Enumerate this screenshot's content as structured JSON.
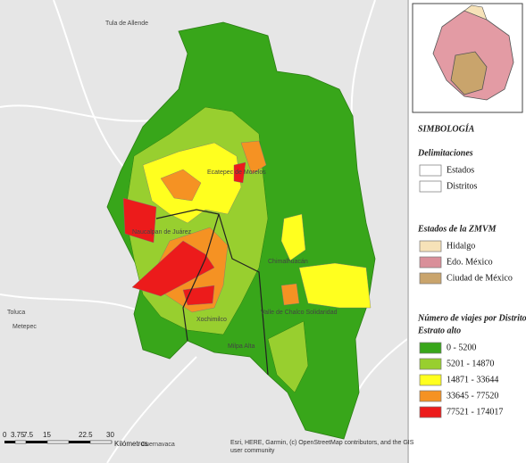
{
  "map": {
    "places": [
      "Tula de Allende",
      "Toluca",
      "Metepec",
      "Cuernavaca",
      "Ecatepec de Morelos",
      "Naucalpan de Juárez",
      "Chimalhuacán",
      "Valle de Chalco Solidaridad",
      "Xochimilco",
      "Milpa Alta"
    ],
    "scale": {
      "ticks": [
        "0",
        "3.75",
        "7.5",
        "15",
        "22.5",
        "30"
      ],
      "unit": "Kilómetros"
    },
    "attribution": [
      "Esri, HERE, Garmin, (c) OpenStreetMap contributors, and the GIS",
      "user community"
    ]
  },
  "legend": {
    "title": "SIMBOLOGÍA",
    "groups": [
      {
        "title": "Delimitaciones",
        "items": [
          {
            "label": "Estados",
            "color": "#ffffff",
            "stroke": "#000000"
          },
          {
            "label": "Distritos",
            "color": "#ffffff",
            "stroke": "#aaaaaa"
          }
        ]
      },
      {
        "title": "Estados de la ZMVM",
        "items": [
          {
            "label": "Hidalgo",
            "color": "#f6e2b8"
          },
          {
            "label": "Edo. México",
            "color": "#d98f99"
          },
          {
            "label": "Ciudad de México",
            "color": "#c9a46c"
          }
        ]
      },
      {
        "title": "Número de viajes por Distrito",
        "subtitle": "Estrato alto",
        "items": [
          {
            "label": "0 - 5200",
            "color": "#38a61a"
          },
          {
            "label": "5201 - 14870",
            "color": "#98cf2f"
          },
          {
            "label": "14871 - 33644",
            "color": "#ffff1f"
          },
          {
            "label": "33645 - 77520",
            "color": "#f59223"
          },
          {
            "label": "77521 - 174017",
            "color": "#ec1b1b"
          }
        ]
      }
    ]
  }
}
